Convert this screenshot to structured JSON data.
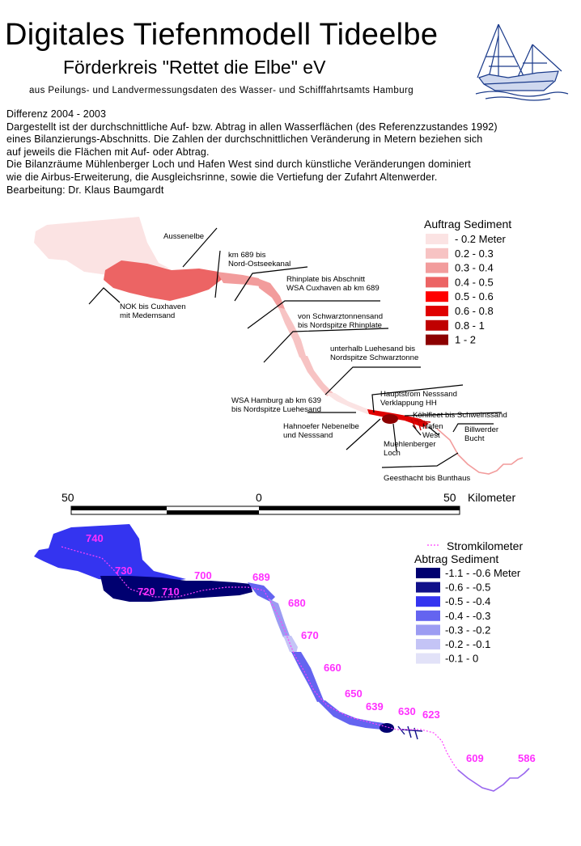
{
  "header": {
    "title": "Digitales Tiefenmodell Tideelbe",
    "subtitle": "Förderkreis \"Rettet die Elbe\" eV",
    "source": "aus Peilungs- und Landvermessungsdaten des Wasser- und Schifffahrtsamts Hamburg"
  },
  "description": [
    "Differenz 2004 - 2003",
    "Dargestellt ist der durchschnittliche Auf- bzw. Abtrag in allen Wasserflächen (des Referenzzustandes 1992)",
    "eines Bilanzierungs-Abschnitts. Die Zahlen der durchschnittlichen Veränderung in Metern beziehen sich",
    "auf jeweils die Flächen mit Auf- oder Abtrag.",
    "Die Bilanzräume Mühlenberger Loch und Hafen West sind durch künstliche Veränderungen dominiert",
    "wie die Airbus-Erweiterung, die Ausgleichsrinne,  sowie die Vertiefung der Zufahrt Altenwerder.",
    "Bearbeitung: Dr. Klaus Baumgardt"
  ],
  "upper_map": {
    "section_labels": [
      [
        "Aussenelbe"
      ],
      [
        "km 689 bis",
        "Nord-Ostseekanal"
      ],
      [
        "Rhinplate bis  Abschnitt",
        "WSA Cuxhaven ab km 689"
      ],
      [
        "von Schwarztonnensand",
        "bis Nordspitze Rhinplate"
      ],
      [
        "unterhalb Luehesand bis",
        "Nordspitze Schwarztonne"
      ],
      [
        "NOK bis Cuxhaven",
        "mit Medemsand"
      ],
      [
        "WSA Hamburg ab km 639",
        "bis Nordspitze Luehesand"
      ],
      [
        "Hauptstrom Nesssand",
        "Verklappung HH"
      ],
      [
        "Köhlfleet bis  Schweinssand"
      ],
      [
        "Hahnoefer Nebenelbe",
        "und Nesssand"
      ],
      [
        "Hafen",
        "West"
      ],
      [
        "Billwerder",
        "Bucht"
      ],
      [
        "Muehlenberger",
        "Loch"
      ],
      [
        "Geesthacht bis Bunthaus"
      ]
    ],
    "legend": {
      "title": "Auftrag Sediment",
      "items": [
        {
          "label": "- 0.2 Meter",
          "color": "#fbe3e3"
        },
        {
          "label": "0.2 - 0.3",
          "color": "#f7c3c3"
        },
        {
          "label": "0.3 - 0.4",
          "color": "#f29c9c"
        },
        {
          "label": "0.4 - 0.5",
          "color": "#ec6464"
        },
        {
          "label": "0.5 - 0.6",
          "color": "#ff0000"
        },
        {
          "label": "0.6 - 0.8",
          "color": "#e00000"
        },
        {
          "label": "0.8 - 1",
          "color": "#c00000"
        },
        {
          "label": "1 - 2",
          "color": "#8c0000"
        }
      ]
    }
  },
  "scale_bar": {
    "labels": [
      "50",
      "0",
      "50"
    ],
    "unit": "Kilometer"
  },
  "lower_map": {
    "stromkilometer": [
      "740",
      "730",
      "720",
      "710",
      "700",
      "689",
      "680",
      "670",
      "660",
      "650",
      "639",
      "630",
      "623",
      "609",
      "586"
    ],
    "legend": {
      "km_label": "Stromkilometer",
      "title": "Abtrag Sediment",
      "items": [
        {
          "label": "-1.1 - -0.6 Meter",
          "color": "#000070"
        },
        {
          "label": "-0.6 - -0.5",
          "color": "#10108a"
        },
        {
          "label": "-0.5 - -0.4",
          "color": "#3434f0"
        },
        {
          "label": "-0.4 - -0.3",
          "color": "#6464f0"
        },
        {
          "label": "-0.3 - -0.2",
          "color": "#9c9cf2"
        },
        {
          "label": "-0.2 - -0.1",
          "color": "#c4c4f6"
        },
        {
          "label": "-0.1 - 0",
          "color": "#e2e2f8"
        }
      ]
    }
  }
}
